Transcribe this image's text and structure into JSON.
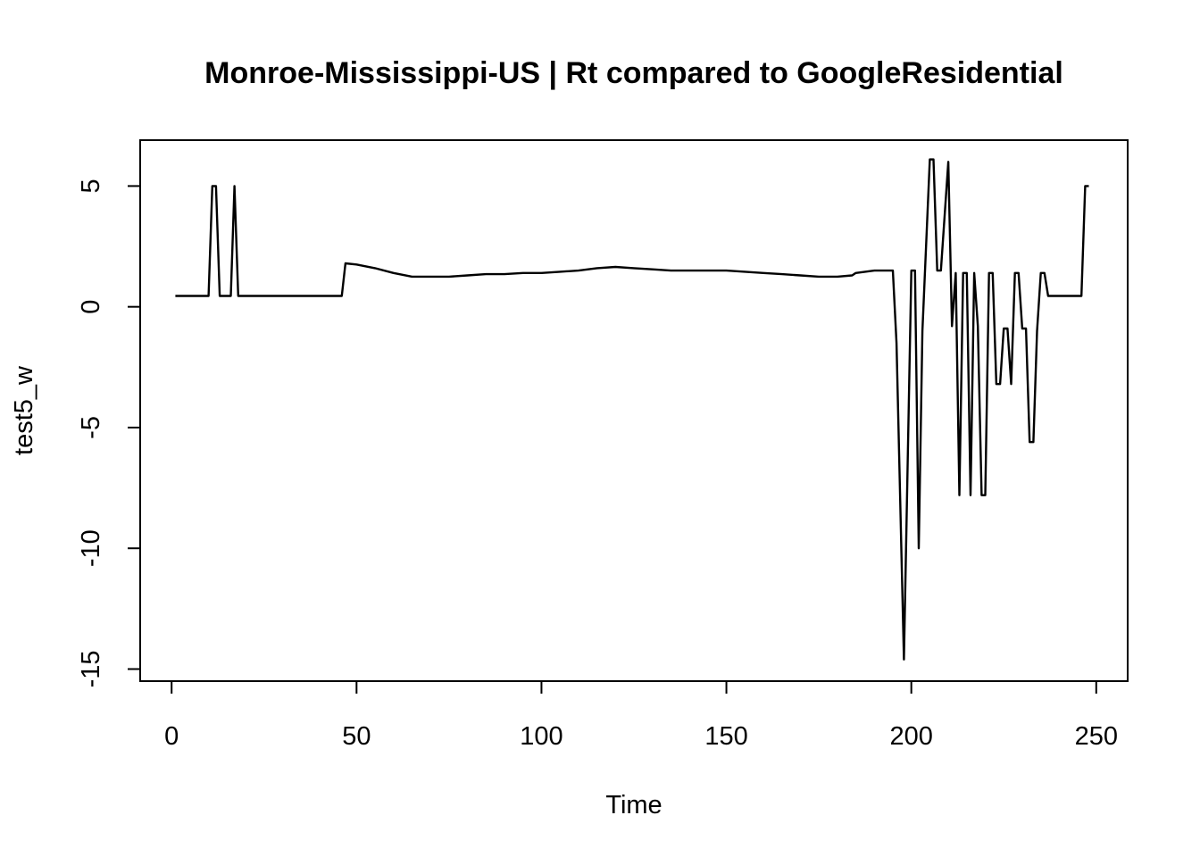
{
  "chart_data": {
    "type": "line",
    "title": "Monroe-Mississippi-US | Rt compared to GoogleResidential",
    "xlabel": "Time",
    "ylabel": "test5_w",
    "xlim": [
      -8.5,
      258.5
    ],
    "ylim": [
      -15.5,
      6.9
    ],
    "xticks": [
      0,
      50,
      100,
      150,
      200,
      250
    ],
    "yticks": [
      -15,
      -10,
      -5,
      0,
      5
    ],
    "grid": false,
    "legend": "none",
    "line_color": "#000000",
    "series": [
      {
        "x": [
          1,
          10,
          11,
          12,
          13,
          16,
          17,
          18,
          19,
          46,
          47,
          50,
          55,
          60,
          65,
          70,
          75,
          80,
          85,
          90,
          95,
          100,
          105,
          110,
          115,
          120,
          125,
          130,
          135,
          140,
          145,
          150,
          155,
          160,
          165,
          170,
          175,
          180,
          184,
          185,
          190,
          195,
          196,
          198,
          200,
          201,
          202,
          203,
          205,
          206,
          207,
          208,
          210,
          211,
          212,
          213,
          214,
          215,
          216,
          217,
          218,
          219,
          220,
          221,
          222,
          223,
          224,
          225,
          226,
          227,
          228,
          229,
          230,
          231,
          232,
          233,
          234,
          235,
          236,
          237,
          246,
          247,
          248
        ],
        "y": [
          0.45,
          0.45,
          5.0,
          5.0,
          0.45,
          0.45,
          5.0,
          0.45,
          0.45,
          0.45,
          1.8,
          1.75,
          1.6,
          1.4,
          1.25,
          1.25,
          1.25,
          1.3,
          1.35,
          1.35,
          1.4,
          1.4,
          1.45,
          1.5,
          1.6,
          1.65,
          1.6,
          1.55,
          1.5,
          1.5,
          1.5,
          1.5,
          1.45,
          1.4,
          1.35,
          1.3,
          1.25,
          1.25,
          1.3,
          1.4,
          1.5,
          1.5,
          -1.5,
          -14.6,
          1.5,
          1.5,
          -10.0,
          -1.0,
          6.1,
          6.1,
          1.5,
          1.5,
          6.0,
          -0.8,
          1.4,
          -7.8,
          1.4,
          1.4,
          -7.8,
          1.4,
          -0.8,
          -7.8,
          -7.8,
          1.4,
          1.4,
          -3.2,
          -3.2,
          -0.9,
          -0.9,
          -3.2,
          1.4,
          1.4,
          -0.9,
          -0.9,
          -5.6,
          -5.6,
          -1.0,
          1.4,
          1.4,
          0.45,
          0.45,
          5.0,
          5.0
        ]
      }
    ]
  }
}
